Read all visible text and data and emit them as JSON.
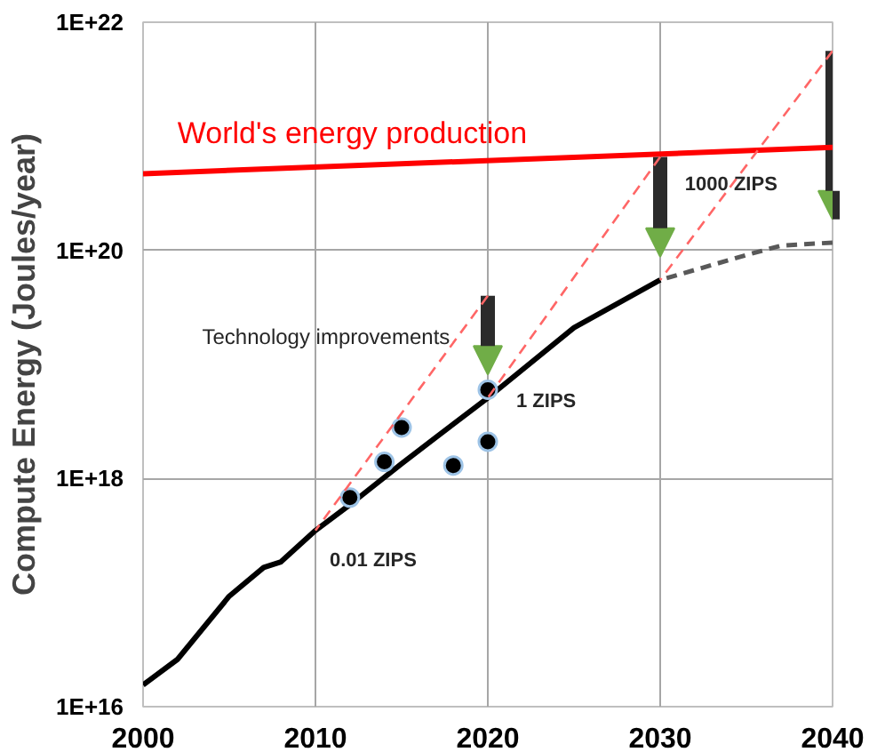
{
  "chart_data": {
    "type": "line",
    "ylabel": "Compute Energy (Joules/year)",
    "log": "y",
    "grid": true,
    "xlim": [
      2000,
      2040
    ],
    "xticks": [
      2000,
      2010,
      2020,
      2030,
      2040
    ],
    "ylim": [
      1e+16,
      1e+22
    ],
    "yticks": [
      {
        "value": 1e+16,
        "label": "1E+16"
      },
      {
        "value": 1e+18,
        "label": "1E+18"
      },
      {
        "value": 1e+20,
        "label": "1E+20"
      },
      {
        "value": 1e+22,
        "label": "1E+22"
      }
    ],
    "series": [
      {
        "color": "#000000",
        "line_style": "solid",
        "x": [
          2000,
          2002,
          2005,
          2007,
          2008,
          2010,
          2012,
          2015,
          2017,
          2020,
          2025,
          2030
        ],
        "values": [
          1.55e+16,
          2.6e+16,
          9.3e+16,
          1.66e+17,
          1.86e+17,
          3.5e+17,
          5.9e+17,
          1.35e+18,
          2.3e+18,
          5.1e+18,
          2.1e+19,
          5.5e+19
        ]
      },
      {
        "color": "#595959",
        "line_style": "dashed",
        "x": [
          2030,
          2035,
          2037,
          2040
        ],
        "values": [
          5.5e+19,
          9.1e+19,
          1.1e+20,
          1.17e+20
        ]
      },
      {
        "name": "World's energy production",
        "color": "#ff0000",
        "line_style": "solid",
        "x": [
          2000,
          2040
        ],
        "values": [
          4.7e+20,
          8e+20
        ]
      },
      {
        "type": "scatter",
        "color": "#000000",
        "marker": "circle",
        "x": [
          2012,
          2014,
          2015,
          2018,
          2020,
          2020
        ],
        "values": [
          6.8e+17,
          1.4e+18,
          2.8e+18,
          1.3e+18,
          2.1e+18,
          6e+18
        ]
      },
      {
        "color": "#ff6666",
        "line_style": "dashed",
        "x": [
          2010,
          2020
        ],
        "values": [
          3.5e+17,
          4e+19
        ]
      },
      {
        "color": "#ff6666",
        "line_style": "dashed",
        "x": [
          2020,
          2030
        ],
        "values": [
          5.1e+18,
          6.6e+20
        ]
      },
      {
        "color": "#ff6666",
        "line_style": "dashed",
        "x": [
          2030,
          2040
        ],
        "values": [
          5.5e+19,
          5.6e+21
        ]
      }
    ],
    "annotations": [
      {
        "text": "0.01 ZIPS",
        "x": 2010,
        "y": 3.5e+17
      },
      {
        "text": "1 ZIPS",
        "x": 2020,
        "y": 5.1e+18
      },
      {
        "text": "1000 ZIPS",
        "x": 2037,
        "y": 1.1e+20
      },
      "Technology improvements"
    ]
  }
}
